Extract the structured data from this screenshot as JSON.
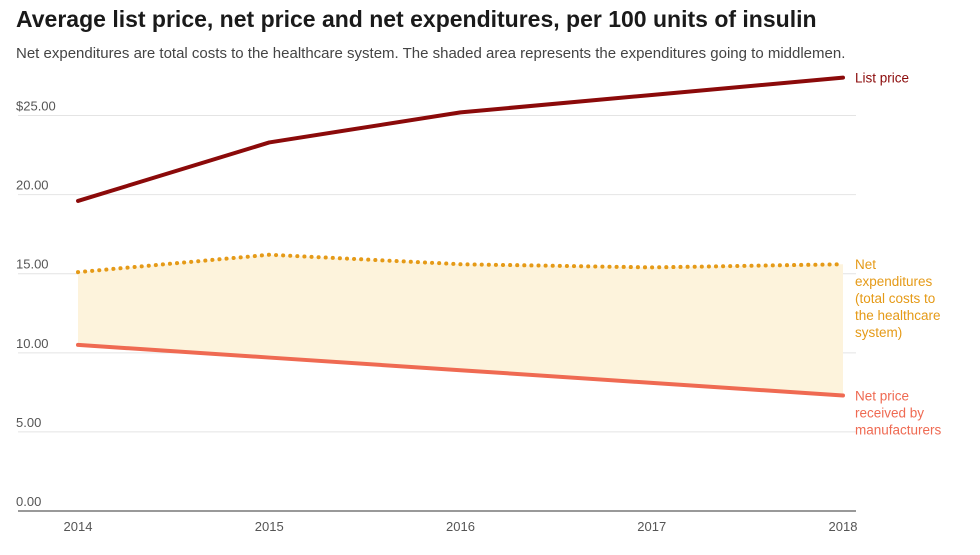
{
  "title": "Average list price, net price and net expenditures, per 100 units of insulin",
  "subtitle": "Net expenditures are total costs to the healthcare system. The shaded area represents the expenditures going to middlemen.",
  "chart_data": {
    "type": "line",
    "title": "Average list price, net price and net expenditures, per 100 units of insulin",
    "subtitle": "Net expenditures are total costs to the healthcare system. The shaded area represents the expenditures going to middlemen.",
    "xlabel": "",
    "ylabel": "",
    "x": [
      2014,
      2015,
      2016,
      2017,
      2018
    ],
    "x_tick_labels": [
      "2014",
      "2015",
      "2016",
      "2017",
      "2018"
    ],
    "ylim": [
      0,
      27.5
    ],
    "y_ticks": [
      0,
      5,
      10,
      15,
      20,
      25
    ],
    "y_tick_labels": [
      "0.00",
      "5.00",
      "10.00",
      "15.00",
      "20.00",
      "$25.00"
    ],
    "grid": true,
    "shaded_area": {
      "between": [
        "Net expenditures (total costs to the healthcare system)",
        "Net price received by manufacturers"
      ],
      "color": "#fdf3dc"
    },
    "series": [
      {
        "name": "List price",
        "label_lines": [
          "List price"
        ],
        "color": "#8b0a0a",
        "style": "solid",
        "values": [
          19.6,
          23.3,
          25.2,
          26.3,
          27.4
        ]
      },
      {
        "name": "Net expenditures (total costs to the healthcare system)",
        "label_lines": [
          "Net",
          "expenditures",
          "(total costs to",
          "the healthcare",
          "system)"
        ],
        "color": "#e59a17",
        "style": "dotted",
        "values": [
          15.1,
          16.2,
          15.6,
          15.4,
          15.6
        ]
      },
      {
        "name": "Net price received by manufacturers",
        "label_lines": [
          "Net price",
          "received by",
          "manufacturers"
        ],
        "color": "#ef6a52",
        "style": "solid",
        "values": [
          10.5,
          9.7,
          8.9,
          8.1,
          7.3
        ]
      }
    ]
  }
}
